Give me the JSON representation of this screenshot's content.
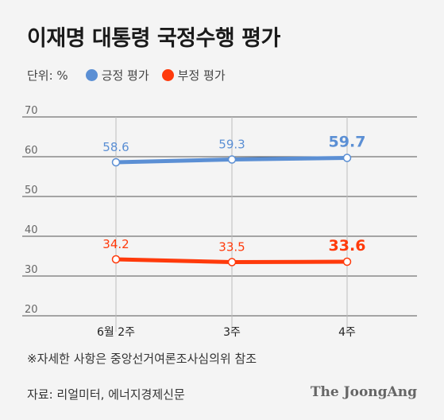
{
  "title": "이재명 대통령 국정수행 평가",
  "unit_label": "단위: %",
  "note": "※자세한 사항은 중앙선거여론조사심의위 참조",
  "source": "자료: 리얼미터, 에너지경제신문",
  "brand": "The JoongAng",
  "chart_data": {
    "type": "line",
    "categories": [
      "6월 2주",
      "3주",
      "4주"
    ],
    "ylim": [
      20,
      70
    ],
    "yticks": [
      20,
      30,
      40,
      50,
      60,
      70
    ],
    "grid": true,
    "legend_placement": "top-left",
    "series": [
      {
        "name": "긍정 평가",
        "values": [
          58.6,
          59.3,
          59.7
        ],
        "labels": [
          "58.6",
          "59.3",
          "59.7"
        ],
        "color": "#5b8fd4"
      },
      {
        "name": "부정 평가",
        "values": [
          34.2,
          33.5,
          33.6
        ],
        "labels": [
          "34.2",
          "33.5",
          "33.6"
        ],
        "color": "#ff3a0b"
      }
    ]
  }
}
